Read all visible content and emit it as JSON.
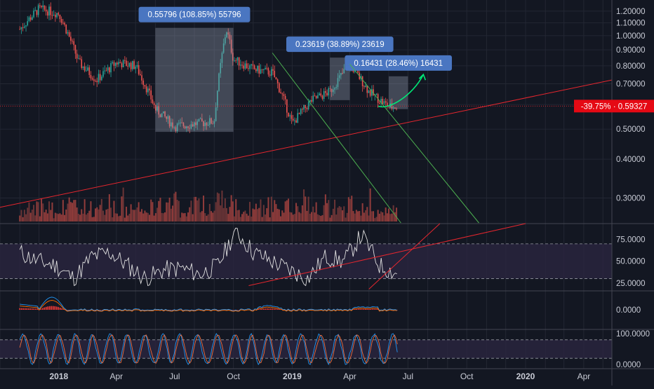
{
  "colors": {
    "background": "#131722",
    "grid": "#232733",
    "axis_text": "#c9ccd6",
    "candle_up": "#26a69a",
    "candle_down": "#ef5350",
    "volume_up": "#7a3a3a",
    "volume_down": "#a8433f",
    "trend_red": "#e5262e",
    "trend_green": "#4caf50",
    "rsi_line": "#e0e0e0",
    "rsi_band": "#2a2540",
    "macd_line": "#2196f3",
    "signal_line": "#ff6d00",
    "histogram": "#e53935",
    "stoch_k": "#2196f3",
    "stoch_d": "#ef6c3c",
    "box_fill": "#9aa4b8",
    "label_bg": "#4a76c1",
    "price_tag_bg": "#e50914"
  },
  "price_axis": {
    "ticks": [
      "1.20000",
      "1.10000",
      "1.00000",
      "0.90000",
      "0.80000",
      "0.70000",
      "0.60000",
      "0.50000",
      "0.40000",
      "0.30000"
    ],
    "tick_values": [
      1.2,
      1.1,
      1.0,
      0.9,
      0.8,
      0.7,
      0.6,
      0.5,
      0.4,
      0.3
    ],
    "scale": "log",
    "current_tag": "-39.75% · 0.59327",
    "current_value": 0.59327
  },
  "rsi_axis": {
    "ticks": [
      "75.0000",
      "50.0000",
      "25.0000"
    ],
    "tick_values": [
      75,
      50,
      25
    ]
  },
  "macd_axis": {
    "ticks": [
      "0.0000"
    ]
  },
  "stoch_axis": {
    "ticks": [
      "100.0000",
      "0.0000"
    ],
    "tick_values": [
      100,
      0
    ]
  },
  "time_axis": {
    "labels": [
      "2018",
      "Apr",
      "Jul",
      "Oct",
      "2019",
      "Apr",
      "Jul",
      "Oct",
      "2020",
      "Apr"
    ],
    "bold": [
      true,
      false,
      false,
      false,
      true,
      false,
      false,
      false,
      true,
      false
    ]
  },
  "annotations": [
    {
      "text": "0.55796 (108.85%) 55796"
    },
    {
      "text": "0.23619 (38.89%) 23619"
    },
    {
      "text": "0.16431 (28.46%) 16431"
    }
  ],
  "chart_data": {
    "type": "candlestick",
    "price_scale": "log",
    "ylim": [
      0.26,
      1.25
    ],
    "x_range": [
      "2017-10",
      "2020-05"
    ],
    "price_series": [
      {
        "t": "2017-10",
        "v": 0.72
      },
      {
        "t": "2017-11",
        "v": 1.05
      },
      {
        "t": "2017-12",
        "v": 1.22
      },
      {
        "t": "2018-01",
        "v": 1.18
      },
      {
        "t": "2018-02",
        "v": 0.82
      },
      {
        "t": "2018-03",
        "v": 0.72
      },
      {
        "t": "2018-04",
        "v": 0.82
      },
      {
        "t": "2018-05",
        "v": 0.8
      },
      {
        "t": "2018-06",
        "v": 0.58
      },
      {
        "t": "2018-07",
        "v": 0.51
      },
      {
        "t": "2018-08",
        "v": 0.52
      },
      {
        "t": "2018-09",
        "v": 0.53
      },
      {
        "t": "2018-09-20",
        "v": 1.05
      },
      {
        "t": "2018-10",
        "v": 0.84
      },
      {
        "t": "2018-11",
        "v": 0.78
      },
      {
        "t": "2018-12",
        "v": 0.76
      },
      {
        "t": "2019-01",
        "v": 0.52
      },
      {
        "t": "2019-02",
        "v": 0.62
      },
      {
        "t": "2019-03",
        "v": 0.66
      },
      {
        "t": "2019-04",
        "v": 0.81
      },
      {
        "t": "2019-05",
        "v": 0.66
      },
      {
        "t": "2019-06",
        "v": 0.59
      }
    ],
    "projection": [
      {
        "t": "2019-06",
        "v": 0.593
      },
      {
        "t": "2019-07",
        "v": 0.75
      }
    ],
    "rsi": [
      60,
      50,
      45,
      30,
      55,
      60,
      45,
      30,
      40,
      42,
      35,
      45,
      85,
      60,
      50,
      40,
      30,
      55,
      50,
      80,
      45,
      35
    ],
    "stoch": [
      90,
      30,
      80,
      20,
      80,
      10,
      90,
      20,
      85,
      15,
      80,
      20,
      90,
      10,
      85,
      20,
      80,
      15,
      90,
      20,
      85,
      15
    ],
    "annotation_boxes": [
      {
        "label": "0.55796 (108.85%) 55796",
        "from": "2018-06",
        "to": "2018-10",
        "low": 0.49,
        "high": 1.06
      },
      {
        "label": "0.23619 (38.89%) 23619",
        "from": "2019-03",
        "to": "2019-04",
        "low": 0.62,
        "high": 0.85
      },
      {
        "label": "0.16431 (28.46%) 16431",
        "from": "2019-06",
        "to": "2019-07",
        "low": 0.58,
        "high": 0.74
      }
    ]
  }
}
